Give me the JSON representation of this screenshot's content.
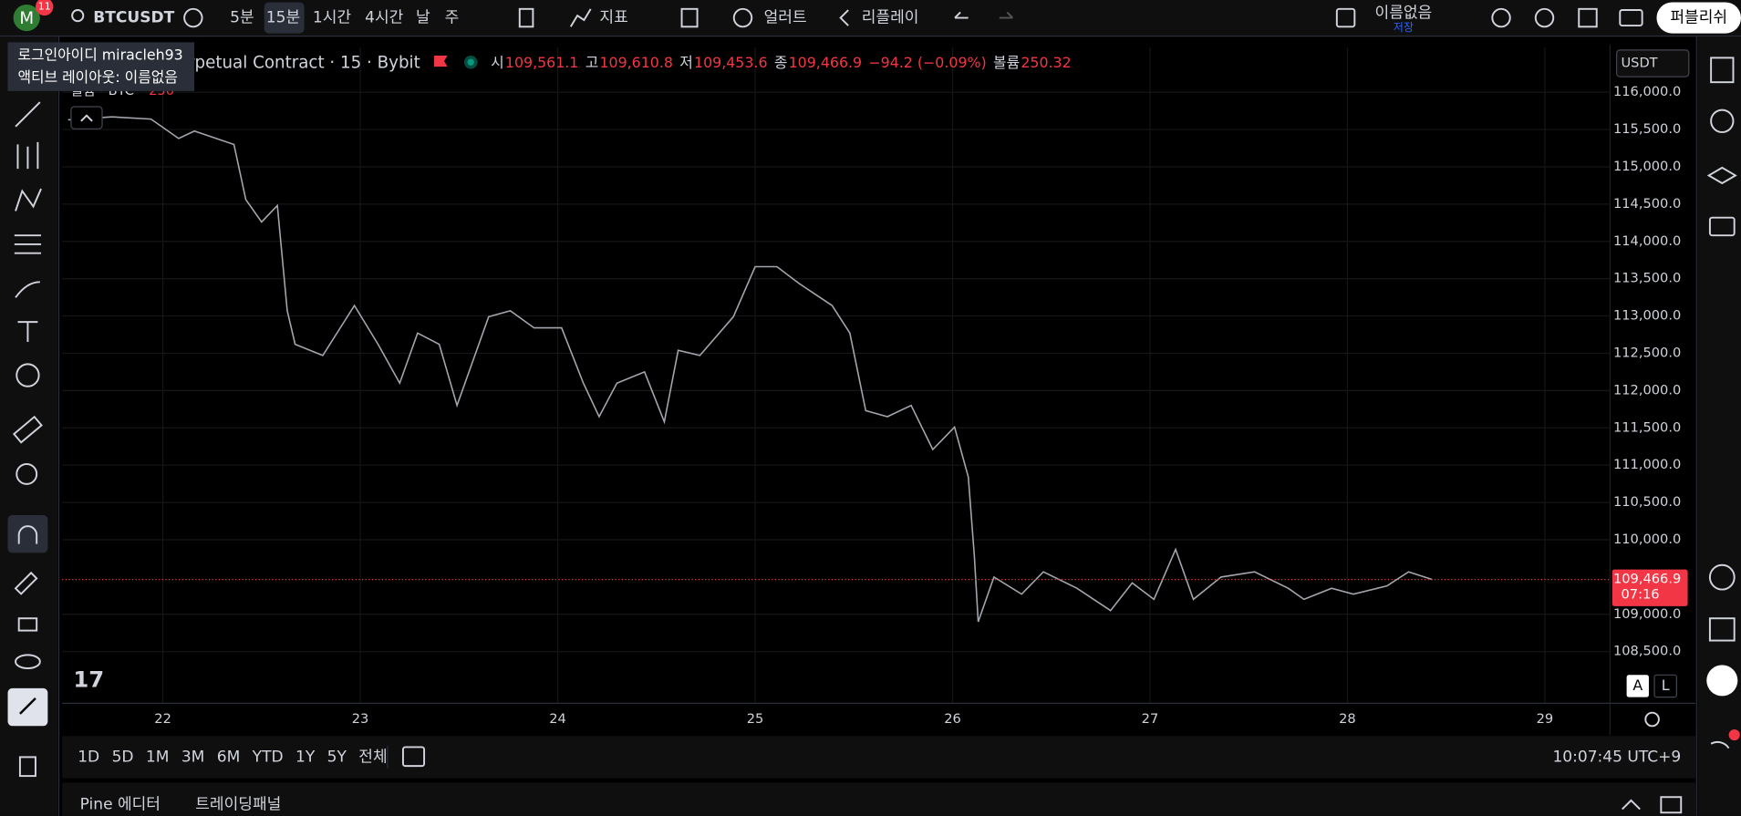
{
  "toolbar": {
    "avatar": "M",
    "badge": "11",
    "symbol": "BTCUSDT",
    "intervals": [
      "5분",
      "15분",
      "1시간",
      "4시간",
      "날",
      "주"
    ],
    "indicators": "지표",
    "alerts": "얼러트",
    "replay": "리플레이",
    "layout_name": "이름없음",
    "save": "저장",
    "publish": "퍼블리쉬"
  },
  "tooltip": {
    "line1": "로그인아이디 miracleh93",
    "line2": "액티브 레이아웃: 이름없음"
  },
  "legend": {
    "title": "erpetual Contract · 15 · Bybit",
    "open_label": "시",
    "open": "109,561.1",
    "high_label": "고",
    "high": "109,610.8",
    "low_label": "저",
    "low": "109,453.6",
    "close_label": "종",
    "close": "109,466.9",
    "change": "−94.2 (−0.09%)",
    "volume_label": "볼륨",
    "volume": "250.32",
    "volume_study": "볼륨 · BTC",
    "volume_study_value": "250"
  },
  "currency": "USDT",
  "chart_data": {
    "type": "line",
    "color": "#a3a6ad",
    "x": [
      21.52,
      21.74,
      21.94,
      22.08,
      22.16,
      22.36,
      22.42,
      22.5,
      22.58,
      22.63,
      22.67,
      22.81,
      22.97,
      23.09,
      23.2,
      23.29,
      23.4,
      23.49,
      23.65,
      23.76,
      23.88,
      24.02,
      24.13,
      24.21,
      24.3,
      24.44,
      24.54,
      24.61,
      24.72,
      24.89,
      25.0,
      25.11,
      25.22,
      25.39,
      25.48,
      25.56,
      25.67,
      25.79,
      25.9,
      26.01,
      26.08,
      26.11,
      26.13,
      26.21,
      26.35,
      26.46,
      26.63,
      26.8,
      26.91,
      27.02,
      27.13,
      27.22,
      27.36,
      27.53,
      27.7,
      27.78,
      27.92,
      28.03,
      28.2,
      28.31,
      28.43
    ],
    "values": [
      115630,
      115670,
      115640,
      115380,
      115480,
      115300,
      114560,
      114260,
      114480,
      113070,
      112620,
      112470,
      113140,
      112620,
      112100,
      112770,
      112620,
      111800,
      112990,
      113070,
      112840,
      112840,
      112100,
      111650,
      112100,
      112250,
      111580,
      112540,
      112470,
      112990,
      113660,
      113660,
      113440,
      113140,
      112770,
      111730,
      111650,
      111800,
      111210,
      111510,
      110840,
      109790,
      108900,
      109500,
      109270,
      109570,
      109350,
      109050,
      109420,
      109200,
      109870,
      109200,
      109500,
      109570,
      109350,
      109200,
      109350,
      109270,
      109380,
      109570,
      109467
    ],
    "xlim": [
      21.49,
      29.33
    ],
    "xticks": [
      22,
      23,
      24,
      25,
      26,
      27,
      28,
      29
    ],
    "ylim": [
      107800,
      116600
    ],
    "yticks": [
      {
        "value": 108500,
        "label": "108,500.0"
      },
      {
        "value": 109000,
        "label": "109,000.0"
      },
      {
        "value": 110000,
        "label": "110,000.0"
      },
      {
        "value": 110500,
        "label": "110,500.0"
      },
      {
        "value": 111000,
        "label": "111,000.0"
      },
      {
        "value": 111500,
        "label": "111,500.0"
      },
      {
        "value": 112000,
        "label": "112,000.0"
      },
      {
        "value": 112500,
        "label": "112,500.0"
      },
      {
        "value": 113000,
        "label": "113,000.0"
      },
      {
        "value": 113500,
        "label": "113,500.0"
      },
      {
        "value": 114000,
        "label": "114,000.0"
      },
      {
        "value": 114500,
        "label": "114,500.0"
      },
      {
        "value": 115000,
        "label": "115,000.0"
      },
      {
        "value": 115500,
        "label": "115,500.0"
      },
      {
        "value": 116000,
        "label": "116,000.0"
      }
    ],
    "grid": true,
    "last_price": {
      "value": 109466.9,
      "label": "109,466.9"
    },
    "last_price_color": "#f23645",
    "countdown": "07:16"
  },
  "scale_buttons": [
    "A",
    "L"
  ],
  "ranges": [
    "1D",
    "5D",
    "1M",
    "3M",
    "6M",
    "YTD",
    "1Y",
    "5Y",
    "전체"
  ],
  "clock": "10:07:45 UTC+9",
  "panels": [
    "Pine 에디터",
    "트레이딩패널"
  ]
}
